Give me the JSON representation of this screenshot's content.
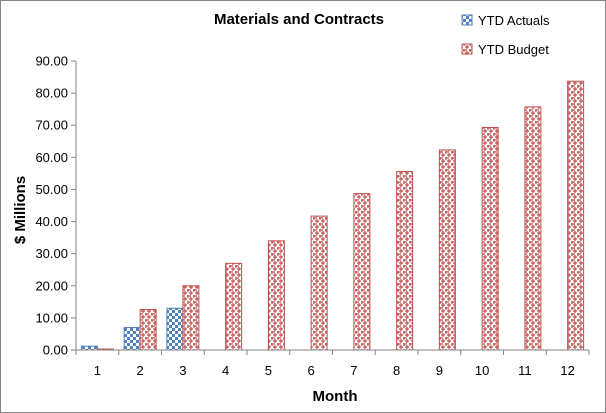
{
  "chart_data": {
    "type": "bar",
    "title": "Materials and Contracts",
    "xlabel": "Month",
    "ylabel": "$ Millions",
    "categories": [
      "1",
      "2",
      "3",
      "4",
      "5",
      "6",
      "7",
      "8",
      "9",
      "10",
      "11",
      "12"
    ],
    "series": [
      {
        "name": "YTD Actuals",
        "values": [
          1.2,
          7.0,
          13.0,
          null,
          null,
          null,
          null,
          null,
          null,
          null,
          null,
          null
        ],
        "color": "#4f81bd",
        "pattern": "checker"
      },
      {
        "name": "YTD Budget",
        "values": [
          0.3,
          12.6,
          20.0,
          27.0,
          34.0,
          41.7,
          48.7,
          55.6,
          62.3,
          69.3,
          75.7,
          83.7
        ],
        "color": "#c0504d",
        "pattern": "weave"
      }
    ],
    "ylim": [
      0,
      90
    ],
    "yticks": [
      "0.00",
      "10.00",
      "20.00",
      "30.00",
      "40.00",
      "50.00",
      "60.00",
      "70.00",
      "80.00",
      "90.00"
    ],
    "grid": false,
    "legend_position": "top-right"
  }
}
